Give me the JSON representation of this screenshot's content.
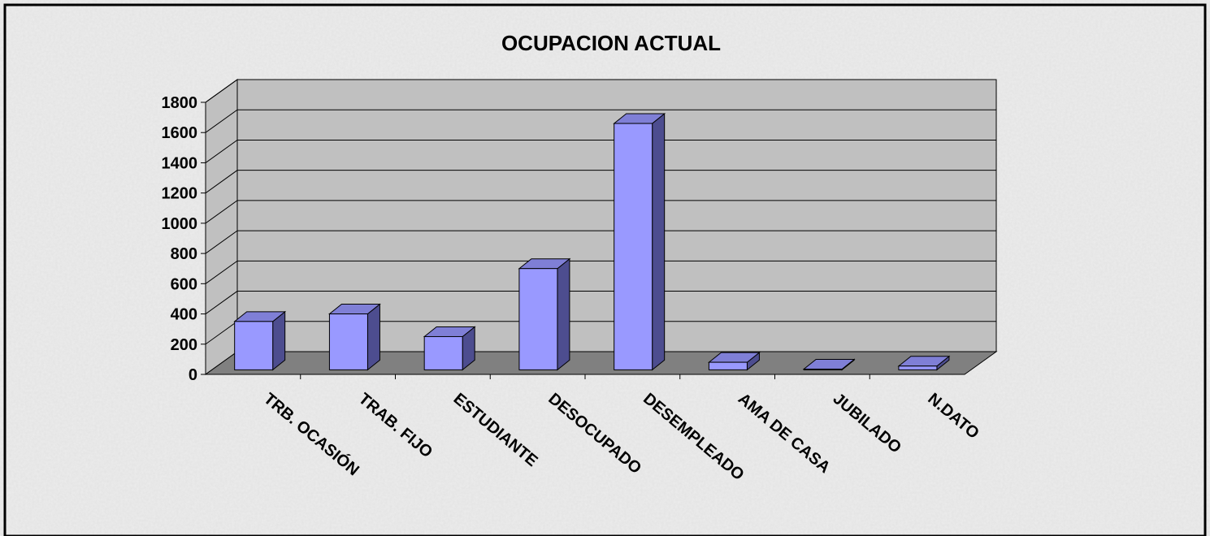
{
  "chart_data": {
    "type": "bar3d",
    "title": "OCUPACION ACTUAL",
    "categories": [
      "TRB. OCASIÓN",
      "TRAB. FIJO",
      "ESTUDIANTE",
      "DESOCUPADO",
      "DESEMPLEADO",
      "AMA DE CASA",
      "JUBILADO",
      "N.DATO"
    ],
    "values": [
      320,
      370,
      220,
      670,
      1630,
      50,
      5,
      25
    ],
    "color": "#9999ff",
    "ylim": [
      0,
      1800
    ],
    "yticks": [
      0,
      200,
      400,
      600,
      800,
      1000,
      1200,
      1400,
      1600,
      1800
    ],
    "grid": true
  }
}
